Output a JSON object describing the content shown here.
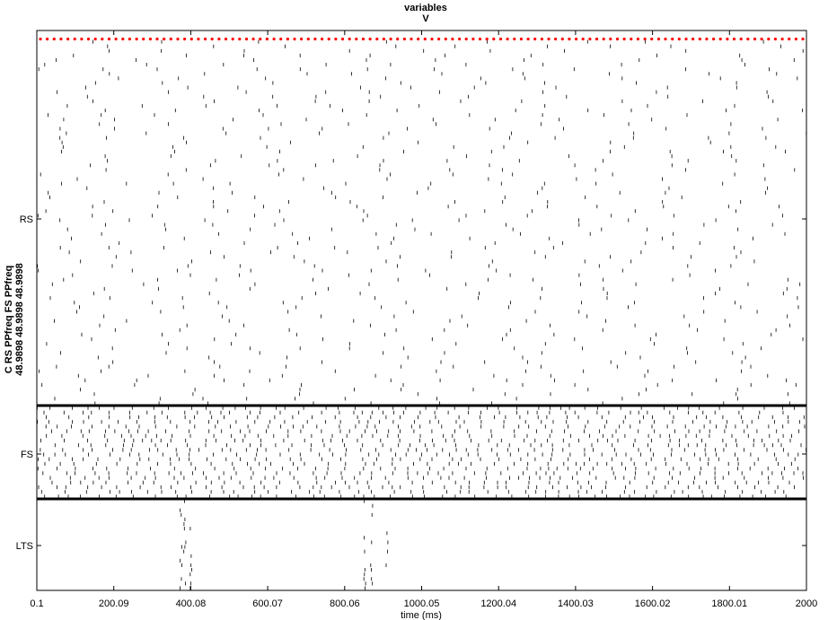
{
  "chart_data": {
    "type": "scatter",
    "title_line1": "variables",
    "title_line2": "V",
    "xlabel": "time (ms)",
    "ylabel_line1": "C RS PPfreq FS PPfreq",
    "ylabel_line2": "48.9898 48.9898 48.9898",
    "xlim": [
      0.1,
      2000
    ],
    "xticks": [
      "0.1",
      "200.09",
      "400.08",
      "600.07",
      "800.06",
      "1000.05",
      "1200.04",
      "1400.03",
      "1600.02",
      "1800.01",
      "2000"
    ],
    "xtick_values": [
      0.1,
      200.09,
      400.08,
      600.07,
      800.06,
      1000.05,
      1200.04,
      1400.03,
      1600.02,
      1800.01,
      2000
    ],
    "populations": [
      {
        "name": "RS",
        "rows": 80,
        "rate_hz": 4.5
      },
      {
        "name": "FS",
        "rows": 20,
        "rate_hz": 24
      },
      {
        "name": "LTS",
        "rows": 20,
        "burst_times_ms": [
          375,
          385,
          400,
          852,
          870,
          910
        ]
      }
    ],
    "population_separators": "thick-black-lines",
    "marker_color": "#000000",
    "separator_color": "#000000",
    "top_marker_color": "#ff0000",
    "top_marker_count": 112
  }
}
